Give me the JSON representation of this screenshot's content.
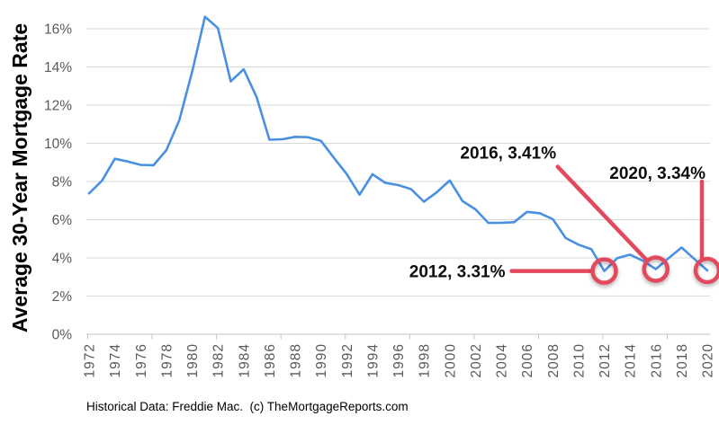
{
  "chart_data": {
    "type": "line",
    "title": "",
    "ylabel": "Average 30-Year Mortgage Rate",
    "xlabel": "",
    "footnote": "Historical Data: Freddie Mac.  (c) TheMortgageReports.com",
    "x": [
      1972,
      1973,
      1974,
      1975,
      1976,
      1977,
      1978,
      1979,
      1980,
      1981,
      1982,
      1983,
      1984,
      1985,
      1986,
      1987,
      1988,
      1989,
      1990,
      1991,
      1992,
      1993,
      1994,
      1995,
      1996,
      1997,
      1998,
      1999,
      2000,
      2001,
      2002,
      2003,
      2004,
      2005,
      2006,
      2007,
      2008,
      2009,
      2010,
      2011,
      2012,
      2013,
      2014,
      2015,
      2016,
      2017,
      2018,
      2019,
      2020
    ],
    "series": [
      {
        "name": "Average 30-Year Mortgage Rate",
        "color": "#4a90e2",
        "values": [
          7.38,
          8.04,
          9.19,
          9.05,
          8.87,
          8.85,
          9.64,
          11.2,
          13.74,
          16.63,
          16.04,
          13.24,
          13.88,
          12.43,
          10.19,
          10.21,
          10.34,
          10.32,
          10.13,
          9.25,
          8.39,
          7.31,
          8.38,
          7.93,
          7.81,
          7.6,
          6.94,
          7.44,
          8.05,
          6.97,
          6.54,
          5.83,
          5.84,
          5.87,
          6.41,
          6.34,
          6.03,
          5.04,
          4.69,
          4.45,
          3.31,
          3.98,
          4.17,
          3.85,
          3.41,
          3.99,
          4.54,
          3.94,
          3.34
        ]
      }
    ],
    "ylim": [
      0,
      17
    ],
    "ytick_step": 2,
    "ytick_suffix": "%",
    "xtick_label_step_years": 2,
    "xtick_mark_step_years": 5,
    "grid": "horizontal",
    "legend": "none",
    "grid_color": "#d9d9d9",
    "axis_color": "#c3c3c3",
    "axis_label_color": "#595959",
    "annotation_color": "#e2495d",
    "annotations": [
      {
        "year": 2012,
        "value": 3.31,
        "label": "2012, 3.31%",
        "placement": "left"
      },
      {
        "year": 2016,
        "value": 3.41,
        "label": "2016, 3.41%",
        "placement": "diagonal"
      },
      {
        "year": 2020,
        "value": 3.34,
        "label": "2020, 3.34%",
        "placement": "above"
      }
    ]
  }
}
